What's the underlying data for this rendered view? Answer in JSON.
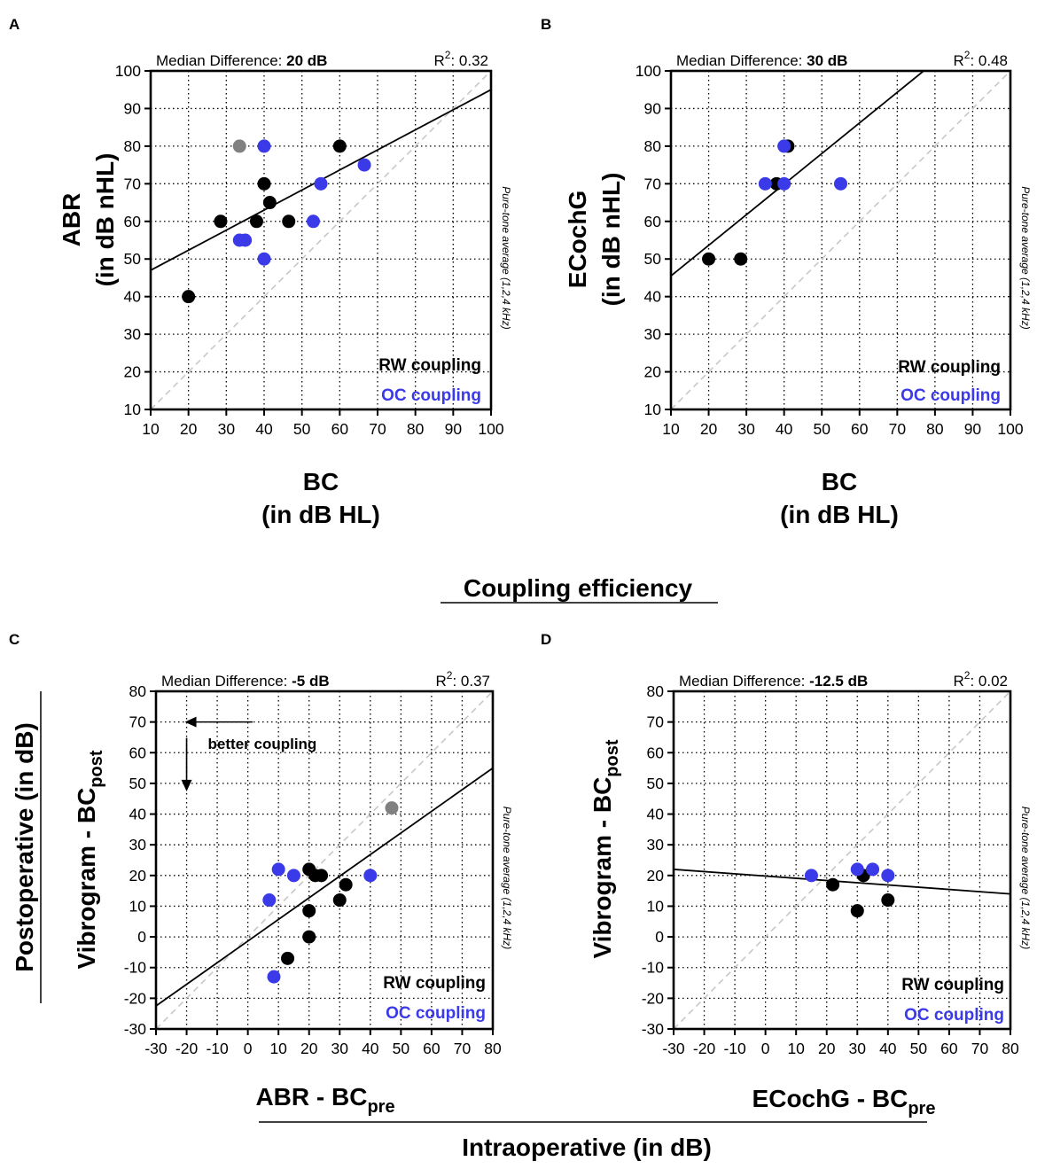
{
  "figure": {
    "coupling_title": "Coupling efficiency",
    "postop_title": "Postoperative (in dB)",
    "intraop_title": "Intraoperative (in dB)"
  },
  "colors": {
    "rw": "#000000",
    "oc": "#3a3ae8",
    "other": "#808080",
    "identity": "#c8c8c8"
  },
  "chart_data": [
    {
      "panel": "A",
      "type": "scatter",
      "median_label": "Median Difference: ",
      "median_value": "20 dB",
      "r2_label": "R",
      "r2_sup": "2",
      "r2_value": ": 0.32",
      "ylabel": "ABR",
      "ylabel_sub": "(in dB nHL)",
      "xlabel": "BC",
      "xlabel_sub": "(in dB HL)",
      "xlabel_subscript": "",
      "ylabel_subscript": "",
      "side_note": "Pure-tone average  (1,2,4 kHz)",
      "legend_rw": "RW coupling",
      "legend_oc": "OC coupling",
      "xlim": [
        10,
        100
      ],
      "ylim": [
        10,
        100
      ],
      "xticks": [
        10,
        20,
        30,
        40,
        50,
        60,
        70,
        80,
        90,
        100
      ],
      "yticks": [
        10,
        20,
        30,
        40,
        50,
        60,
        70,
        80,
        90,
        100
      ],
      "fit_line": [
        [
          10,
          47
        ],
        [
          100,
          95
        ]
      ],
      "series": [
        {
          "name": "RW coupling",
          "color": "rw",
          "points": [
            [
              20,
              40
            ],
            [
              28.5,
              60
            ],
            [
              38,
              60
            ],
            [
              40,
              70
            ],
            [
              41.5,
              65
            ],
            [
              46.5,
              60
            ],
            [
              60,
              80
            ]
          ]
        },
        {
          "name": "OC coupling",
          "color": "oc",
          "points": [
            [
              33.5,
              55
            ],
            [
              35,
              55
            ],
            [
              40,
              50
            ],
            [
              40,
              80
            ],
            [
              53,
              60
            ],
            [
              55,
              70
            ],
            [
              66.5,
              75
            ]
          ]
        },
        {
          "name": "Other",
          "color": "other",
          "points": [
            [
              33.5,
              80
            ]
          ]
        }
      ]
    },
    {
      "panel": "B",
      "type": "scatter",
      "median_label": "Median Difference: ",
      "median_value": "30 dB",
      "r2_label": "R",
      "r2_sup": "2",
      "r2_value": ": 0.48",
      "ylabel": "ECochG",
      "ylabel_sub": "(in dB nHL)",
      "xlabel": "BC",
      "xlabel_sub": "(in dB HL)",
      "xlabel_subscript": "",
      "ylabel_subscript": "",
      "side_note": "Pure-tone average  (1,2,4 kHz)",
      "legend_rw": "RW coupling",
      "legend_oc": "OC coupling",
      "xlim": [
        10,
        100
      ],
      "ylim": [
        10,
        100
      ],
      "xticks": [
        10,
        20,
        30,
        40,
        50,
        60,
        70,
        80,
        90,
        100
      ],
      "yticks": [
        10,
        20,
        30,
        40,
        50,
        60,
        70,
        80,
        90,
        100
      ],
      "fit_line": [
        [
          10,
          45.5
        ],
        [
          77,
          100
        ]
      ],
      "series": [
        {
          "name": "RW coupling",
          "color": "rw",
          "points": [
            [
              20,
              50
            ],
            [
              28.5,
              50
            ],
            [
              38,
              70
            ],
            [
              41,
              80
            ]
          ]
        },
        {
          "name": "OC coupling",
          "color": "oc",
          "points": [
            [
              35,
              70
            ],
            [
              40,
              70
            ],
            [
              40,
              80
            ],
            [
              55,
              70
            ]
          ]
        }
      ]
    },
    {
      "panel": "C",
      "type": "scatter",
      "median_label": "Median Difference: ",
      "median_value": "-5 dB",
      "r2_label": "R",
      "r2_sup": "2",
      "r2_value": ": 0.37",
      "ylabel": "Vibrogram - BC",
      "ylabel_subscript": "post",
      "ylabel_sub": "",
      "xlabel": "ABR - BC",
      "xlabel_subscript": "pre",
      "xlabel_sub": "",
      "side_note": "Pure-tone average  (1,2,4 kHz)",
      "legend_rw": "RW coupling",
      "legend_oc": "OC coupling",
      "annotation": "better coupling",
      "xlim": [
        -30,
        80
      ],
      "ylim": [
        -30,
        80
      ],
      "xticks": [
        -30,
        -20,
        -10,
        0,
        10,
        20,
        30,
        40,
        50,
        60,
        70,
        80
      ],
      "yticks": [
        -30,
        -20,
        -10,
        0,
        10,
        20,
        30,
        40,
        50,
        60,
        70,
        80
      ],
      "fit_line": [
        [
          -30,
          -22.5
        ],
        [
          80,
          55
        ]
      ],
      "series": [
        {
          "name": "RW coupling",
          "color": "rw",
          "points": [
            [
              13,
              -7
            ],
            [
              20,
              0
            ],
            [
              20,
              8.5
            ],
            [
              20,
              22
            ],
            [
              22,
              20
            ],
            [
              24,
              20
            ],
            [
              30,
              12
            ],
            [
              32,
              17
            ]
          ]
        },
        {
          "name": "OC coupling",
          "color": "oc",
          "points": [
            [
              7,
              12
            ],
            [
              8.5,
              -13
            ],
            [
              10,
              22
            ],
            [
              15,
              20
            ],
            [
              40,
              20
            ]
          ]
        },
        {
          "name": "Other",
          "color": "other",
          "points": [
            [
              47,
              42
            ]
          ]
        }
      ]
    },
    {
      "panel": "D",
      "type": "scatter",
      "median_label": "Median Difference: ",
      "median_value": "-12.5 dB",
      "r2_label": "R",
      "r2_sup": "2",
      "r2_value": ": 0.02",
      "ylabel": "Vibrogram - BC",
      "ylabel_subscript": "post",
      "ylabel_sub": "",
      "xlabel": "ECochG - BC",
      "xlabel_subscript": "pre",
      "xlabel_sub": "",
      "side_note": "Pure-tone average  (1,2,4 kHz)",
      "legend_rw": "RW coupling",
      "legend_oc": "OC coupling",
      "xlim": [
        -30,
        80
      ],
      "ylim": [
        -30,
        80
      ],
      "xticks": [
        -30,
        -20,
        -10,
        0,
        10,
        20,
        30,
        40,
        50,
        60,
        70,
        80
      ],
      "yticks": [
        -30,
        -20,
        -10,
        0,
        10,
        20,
        30,
        40,
        50,
        60,
        70,
        80
      ],
      "fit_line": [
        [
          -30,
          22
        ],
        [
          80,
          14
        ]
      ],
      "series": [
        {
          "name": "RW coupling",
          "color": "rw",
          "points": [
            [
              22,
              17
            ],
            [
              30,
              8.5
            ],
            [
              32,
              20
            ],
            [
              40,
              12
            ]
          ]
        },
        {
          "name": "OC coupling",
          "color": "oc",
          "points": [
            [
              15,
              20
            ],
            [
              30,
              22
            ],
            [
              35,
              22
            ],
            [
              40,
              20
            ]
          ]
        }
      ]
    }
  ]
}
